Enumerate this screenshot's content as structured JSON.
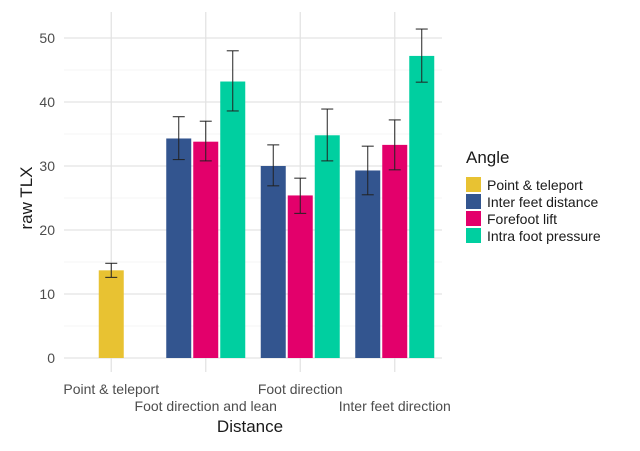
{
  "chart_data": {
    "type": "bar",
    "xlabel": "Distance",
    "ylabel": "raw TLX",
    "ylim": [
      0,
      50
    ],
    "yticks": [
      0,
      10,
      20,
      30,
      40,
      50
    ],
    "grid": true,
    "legend_title": "Angle",
    "legend_position": "right",
    "categories": [
      "Point & teleport",
      "Foot direction and lean",
      "Foot direction",
      "Inter feet direction"
    ],
    "series": [
      {
        "name": "Point & teleport",
        "color": "#E8C232",
        "values": [
          13.7,
          null,
          null,
          null
        ],
        "err_low": [
          12.6,
          null,
          null,
          null
        ],
        "err_high": [
          14.8,
          null,
          null,
          null
        ]
      },
      {
        "name": "Inter feet distance",
        "color": "#33558F",
        "values": [
          null,
          34.3,
          30.0,
          29.3
        ],
        "err_low": [
          null,
          31.0,
          26.9,
          25.5
        ],
        "err_high": [
          null,
          37.7,
          33.3,
          33.1
        ]
      },
      {
        "name": "Forefoot lift",
        "color": "#E3006B",
        "values": [
          null,
          33.8,
          25.4,
          33.3
        ],
        "err_low": [
          null,
          30.8,
          22.6,
          29.4
        ],
        "err_high": [
          null,
          37.0,
          28.1,
          37.2
        ]
      },
      {
        "name": "Intra foot pressure",
        "color": "#00CFA0",
        "values": [
          null,
          43.2,
          34.8,
          47.2
        ],
        "err_low": [
          null,
          38.6,
          30.8,
          43.1
        ],
        "err_high": [
          null,
          48.0,
          38.9,
          51.4
        ]
      }
    ]
  }
}
